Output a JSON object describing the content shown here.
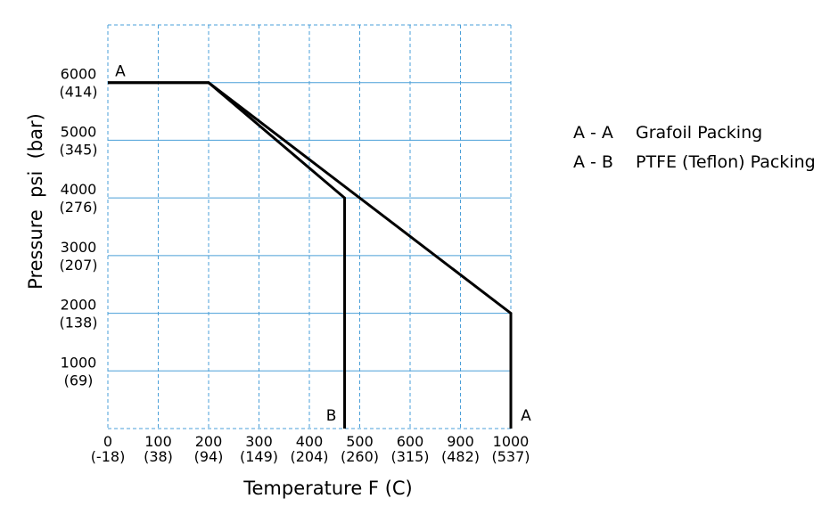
{
  "chart_data": {
    "type": "line",
    "title": "",
    "xlabel": "Temperature F (C)",
    "ylabel": "Pressure  psi  (bar)",
    "x_ticks": [
      {
        "f": "0",
        "c": "(-18)"
      },
      {
        "f": "100",
        "c": "(38)"
      },
      {
        "f": "200",
        "c": "(94)"
      },
      {
        "f": "300",
        "c": "(149)"
      },
      {
        "f": "400",
        "c": "(204)"
      },
      {
        "f": "500",
        "c": "(260)"
      },
      {
        "f": "600",
        "c": "(315)"
      },
      {
        "f": "900",
        "c": "(482)"
      },
      {
        "f": "1000",
        "c": "(537)"
      }
    ],
    "y_ticks": [
      {
        "value": 1000,
        "psi": "1000",
        "bar": "(69)"
      },
      {
        "value": 2000,
        "psi": "2000",
        "bar": "(138)"
      },
      {
        "value": 3000,
        "psi": "3000",
        "bar": "(207)"
      },
      {
        "value": 4000,
        "psi": "4000",
        "bar": "(276)"
      },
      {
        "value": 5000,
        "psi": "5000",
        "bar": "(345)"
      },
      {
        "value": 6000,
        "psi": "6000",
        "bar": "(414)"
      }
    ],
    "grid_lines_y": [
      0,
      1000,
      2000,
      3000,
      4000,
      5000,
      6000,
      7000
    ],
    "ylim": [
      0,
      7000
    ],
    "x_index_range": [
      0,
      8
    ],
    "series": [
      {
        "name": "Grafoil Packing",
        "legend_code": "A - A",
        "start_label": "A",
        "end_label": "A",
        "points": [
          [
            0,
            6000
          ],
          [
            2,
            6000
          ],
          [
            8,
            2000
          ],
          [
            8,
            0
          ]
        ]
      },
      {
        "name": "PTFE (Teflon) Packing",
        "legend_code": "A - B",
        "end_label": "B",
        "points": [
          [
            0,
            6000
          ],
          [
            2,
            6000
          ],
          [
            4.7,
            4000
          ],
          [
            4.7,
            0
          ]
        ]
      }
    ],
    "grid": true,
    "legend_position": "right",
    "colors": {
      "line": "#000000",
      "grid": "#4a9fd8"
    }
  }
}
